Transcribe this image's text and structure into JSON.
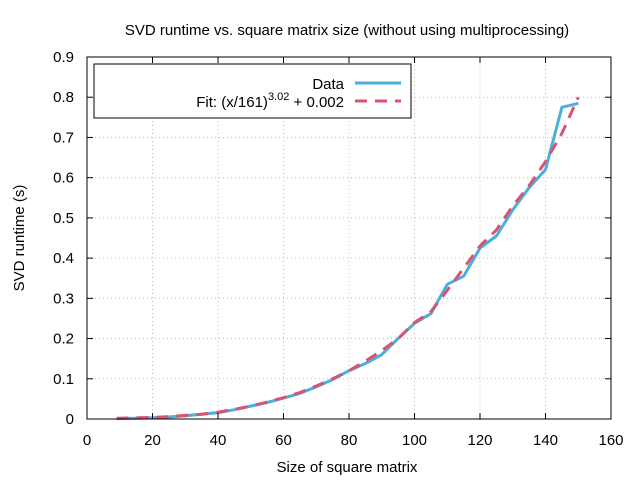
{
  "chart_data": {
    "type": "line",
    "title": "SVD runtime vs. square matrix size (without using multiprocessing)",
    "xlabel": "Size of square matrix",
    "ylabel": "SVD runtime (s)",
    "xlim": [
      0,
      160
    ],
    "ylim": [
      0,
      0.9
    ],
    "xticks": [
      0,
      20,
      40,
      60,
      80,
      100,
      120,
      140,
      160
    ],
    "yticks": [
      0,
      0.1,
      0.2,
      0.3,
      0.4,
      0.5,
      0.6,
      0.7,
      0.8,
      0.9
    ],
    "grid": true,
    "legend_position": "top-left",
    "series": [
      {
        "name": "Data",
        "style": "solid",
        "color": "#4aaede",
        "x": [
          9,
          15,
          20,
          25,
          30,
          35,
          40,
          45,
          50,
          55,
          60,
          65,
          70,
          75,
          80,
          85,
          90,
          95,
          100,
          105,
          110,
          115,
          120,
          125,
          130,
          135,
          140,
          145,
          150
        ],
        "y": [
          0.001,
          0.002,
          0.003,
          0.005,
          0.008,
          0.012,
          0.016,
          0.023,
          0.032,
          0.041,
          0.052,
          0.064,
          0.08,
          0.098,
          0.12,
          0.138,
          0.16,
          0.2,
          0.238,
          0.262,
          0.335,
          0.355,
          0.425,
          0.455,
          0.52,
          0.575,
          0.62,
          0.775,
          0.785
        ]
      },
      {
        "name": "Fit",
        "legend_text": "Fit: (x/161)",
        "legend_sup": "3.02",
        "legend_tail": " + 0.002",
        "style": "dashed",
        "color": "#d95471",
        "x": [
          9,
          15,
          20,
          25,
          30,
          35,
          40,
          45,
          50,
          55,
          60,
          65,
          70,
          75,
          80,
          85,
          90,
          95,
          100,
          105,
          110,
          115,
          120,
          125,
          130,
          135,
          140,
          145,
          150
        ],
        "y": [
          0.002,
          0.003,
          0.004,
          0.006,
          0.009,
          0.012,
          0.017,
          0.024,
          0.032,
          0.042,
          0.053,
          0.066,
          0.082,
          0.1,
          0.12,
          0.144,
          0.17,
          0.2,
          0.24,
          0.267,
          0.32,
          0.375,
          0.43,
          0.47,
          0.53,
          0.58,
          0.64,
          0.71,
          0.8
        ]
      }
    ]
  }
}
